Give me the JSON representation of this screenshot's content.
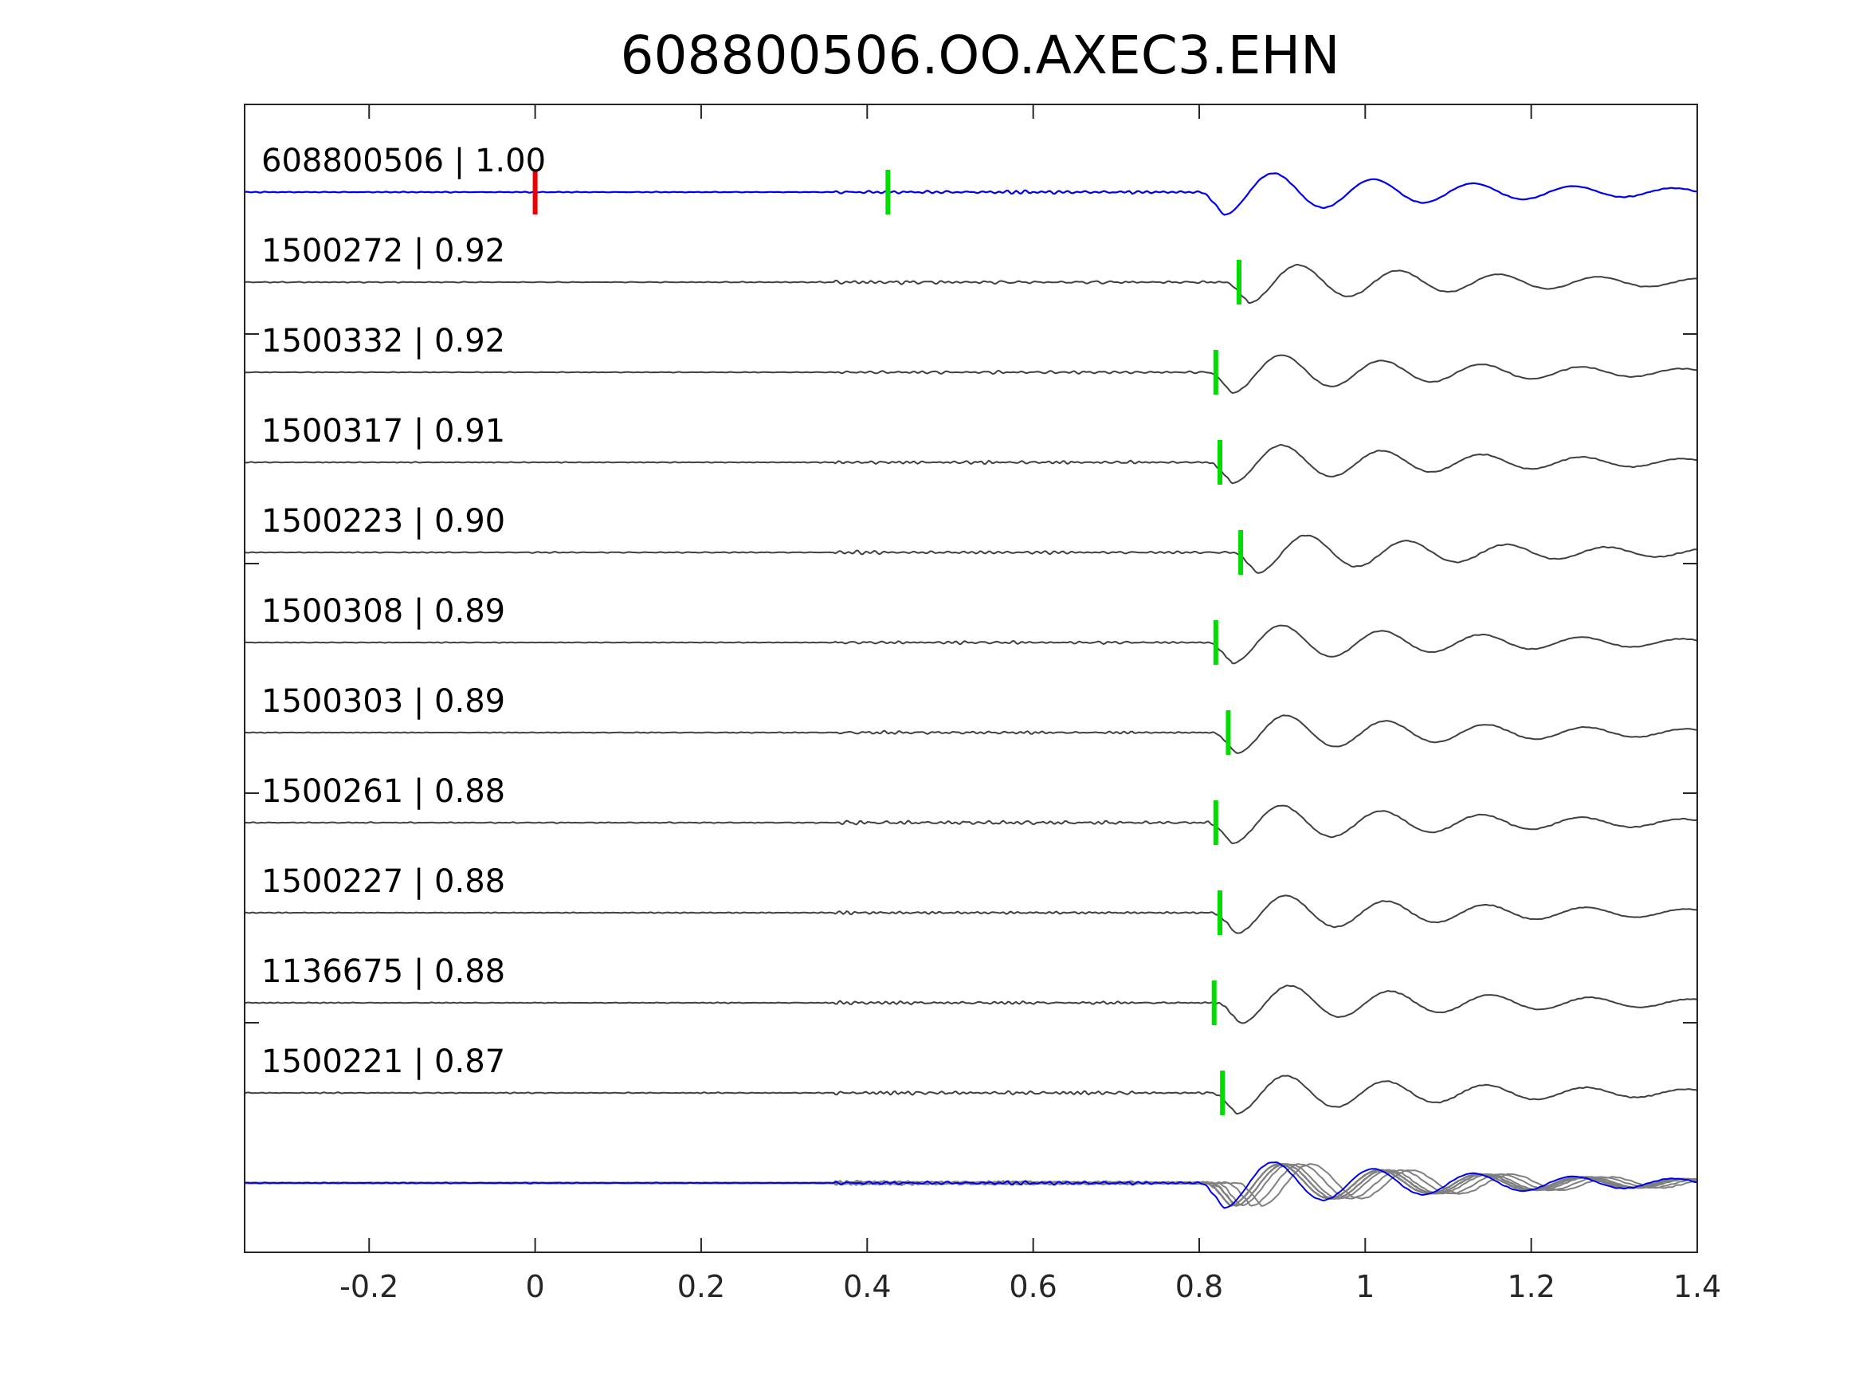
{
  "chart_data": {
    "type": "line",
    "title": "608800506.OO.AXEC3.EHN",
    "xlabel": "",
    "ylabel": "",
    "xlim": [
      -0.35,
      1.4
    ],
    "xticks": [
      {
        "value": -0.2,
        "label": "-0.2"
      },
      {
        "value": 0,
        "label": "0"
      },
      {
        "value": 0.2,
        "label": "0.2"
      },
      {
        "value": 0.4,
        "label": "0.4"
      },
      {
        "value": 0.6,
        "label": "0.6"
      },
      {
        "value": 0.8,
        "label": "0.8"
      },
      {
        "value": 1,
        "label": "1"
      },
      {
        "value": 1.2,
        "label": "1.2"
      },
      {
        "value": 1.4,
        "label": "1.4"
      }
    ],
    "grid": false,
    "colors": {
      "template": "#0000ee",
      "trace": "#404040",
      "stack": "#808080",
      "pick": "#00dd00",
      "origin": "#ee0000",
      "axis": "#262626"
    },
    "origin_marker_time": 0,
    "series": [
      {
        "name": "608800506",
        "cc": "1.00",
        "pick": 0.425,
        "arrival": 0.83,
        "template": true
      },
      {
        "name": "1500272",
        "cc": "0.92",
        "pick": 0.848,
        "arrival": 0.86
      },
      {
        "name": "1500332",
        "cc": "0.92",
        "pick": 0.82,
        "arrival": 0.84
      },
      {
        "name": "1500317",
        "cc": "0.91",
        "pick": 0.825,
        "arrival": 0.84
      },
      {
        "name": "1500223",
        "cc": "0.90",
        "pick": 0.85,
        "arrival": 0.87
      },
      {
        "name": "1500308",
        "cc": "0.89",
        "pick": 0.82,
        "arrival": 0.84
      },
      {
        "name": "1500303",
        "cc": "0.89",
        "pick": 0.835,
        "arrival": 0.845
      },
      {
        "name": "1500261",
        "cc": "0.88",
        "pick": 0.82,
        "arrival": 0.84
      },
      {
        "name": "1500227",
        "cc": "0.88",
        "pick": 0.825,
        "arrival": 0.845
      },
      {
        "name": "1136675",
        "cc": "0.88",
        "pick": 0.818,
        "arrival": 0.85
      },
      {
        "name": "1500221",
        "cc": "0.87",
        "pick": 0.828,
        "arrival": 0.845
      }
    ]
  }
}
